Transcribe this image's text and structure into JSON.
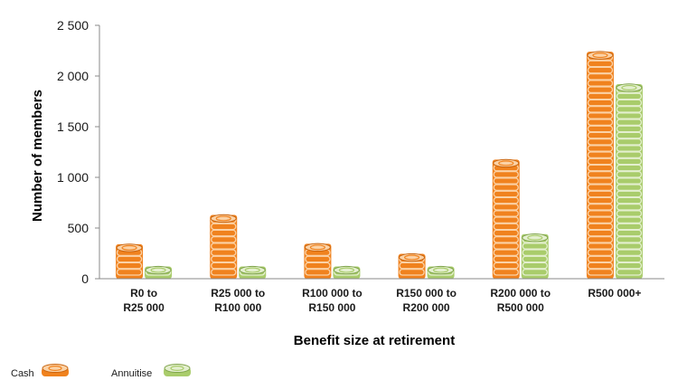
{
  "chart_data": {
    "type": "bar",
    "xlabel": "Benefit size at retirement",
    "ylabel": "Number of members",
    "ylim": [
      0,
      2500
    ],
    "yticks": [
      "0",
      "500",
      "1 000",
      "1 500",
      "2 000",
      "2 500"
    ],
    "ytick_values": [
      0,
      500,
      1000,
      1500,
      2000,
      2500
    ],
    "categories": [
      [
        "R0 to",
        "R25 000"
      ],
      [
        "R25 000 to",
        "R100 000"
      ],
      [
        "R100 000 to",
        "R150 000"
      ],
      [
        "R150 000 to",
        "R200 000"
      ],
      [
        "R200 000 to",
        "R500 000"
      ],
      [
        "R500 000+"
      ]
    ],
    "series": [
      {
        "name": "Cash",
        "values": [
          340,
          630,
          345,
          245,
          1175,
          2240
        ]
      },
      {
        "name": "Annuitise",
        "values": [
          120,
          120,
          120,
          120,
          440,
          1920
        ]
      }
    ],
    "colors": {
      "Cash": "#f0821e",
      "Annuitise": "#a9cc6b"
    },
    "grid": false,
    "legend_position": "bottom-left"
  }
}
